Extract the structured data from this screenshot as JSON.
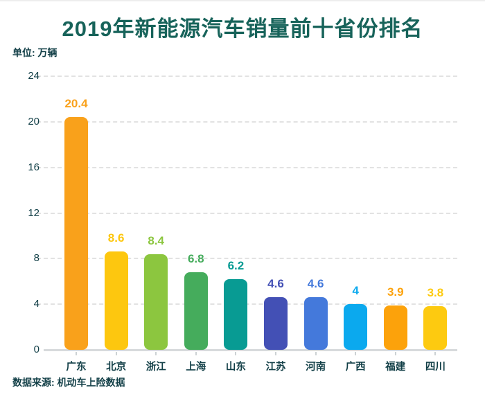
{
  "header": {
    "title": "2019年新能源汽车销量前十省份排名",
    "unit_label": "单位: 万辆"
  },
  "footer": {
    "source_label": "数据来源: 机动车上险数据"
  },
  "colors": {
    "title_text": "#17635A",
    "axis_text": "#123F47",
    "gridline": "#E2E2E2",
    "axis_line": "#D7DADC"
  },
  "chart_data": {
    "type": "bar",
    "title": "2019年新能源汽车销量前十省份排名",
    "ylabel": "万辆",
    "categories": [
      "广东",
      "北京",
      "浙江",
      "上海",
      "山东",
      "江苏",
      "河南",
      "广西",
      "福建",
      "四川"
    ],
    "values": [
      20.4,
      8.6,
      8.4,
      6.8,
      6.2,
      4.6,
      4.6,
      4,
      3.9,
      3.8
    ],
    "value_labels": [
      "20.4",
      "8.6",
      "8.4",
      "6.8",
      "6.2",
      "4.6",
      "4.6",
      "4",
      "3.9",
      "3.8"
    ],
    "bar_colors": [
      "#F9A11B",
      "#FDC70F",
      "#8CC63F",
      "#45AC5C",
      "#089B93",
      "#4350B5",
      "#4479DB",
      "#0BA9EE",
      "#FCA20B",
      "#FDCA10"
    ],
    "ylim": [
      0,
      24
    ],
    "yticks": [
      0,
      4,
      8,
      12,
      16,
      20,
      24
    ],
    "grid": "dashed-horizontal",
    "legend": "none"
  }
}
